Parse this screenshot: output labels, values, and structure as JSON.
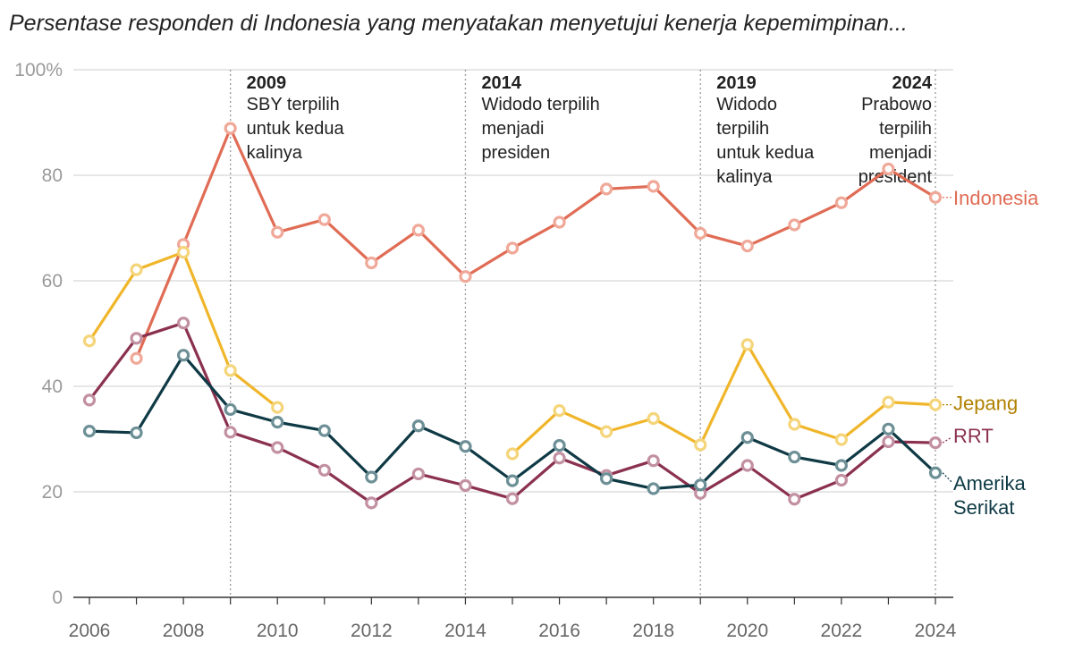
{
  "title": "Persentase responden di Indonesia yang menyatakan menyetujui kenerja kepemimpinan...",
  "chart_data": {
    "type": "line",
    "xlim": [
      2006,
      2024
    ],
    "ylim": [
      0,
      100
    ],
    "x_ticks": [
      2006,
      2008,
      2010,
      2012,
      2014,
      2016,
      2018,
      2020,
      2022,
      2024
    ],
    "y_ticks": [
      0,
      20,
      40,
      60,
      80,
      100
    ],
    "y_tick_labels": [
      "0",
      "20",
      "40",
      "60",
      "80",
      "100%"
    ],
    "grid": true,
    "series": [
      {
        "name": "Indonesia",
        "color": "#e06c55",
        "marker_color": "#f0a898",
        "x": [
          2007,
          2008,
          2009,
          2010,
          2011,
          2012,
          2013,
          2014,
          2015,
          2016,
          2017,
          2018,
          2019,
          2020,
          2021,
          2022,
          2023,
          2024
        ],
        "y": [
          45.3,
          66.9,
          88.9,
          69.2,
          71.6,
          63.4,
          69.6,
          60.8,
          66.2,
          71.1,
          77.4,
          77.9,
          69.0,
          66.6,
          70.6,
          74.8,
          81.2,
          75.8
        ]
      },
      {
        "name": "Jepang",
        "color": "#f0b62b",
        "marker_color": "#f5d57a",
        "label_color": "#b08000",
        "x": [
          2006,
          2007,
          2008,
          2009,
          2010,
          null,
          2015,
          2016,
          2017,
          2018,
          2019,
          2020,
          2021,
          2022,
          2023,
          2024
        ],
        "y": [
          48.6,
          62.1,
          65.4,
          43.0,
          36.0,
          null,
          27.2,
          35.4,
          31.4,
          33.9,
          28.9,
          47.9,
          32.8,
          29.9,
          37.0,
          36.5
        ]
      },
      {
        "name": "RRT",
        "color": "#8b3150",
        "marker_color": "#c290a2",
        "x": [
          2006,
          2007,
          2008,
          2009,
          2010,
          2011,
          2012,
          2013,
          2014,
          2015,
          2016,
          2017,
          2018,
          2019,
          2020,
          2021,
          2022,
          2023,
          2024
        ],
        "y": [
          37.4,
          49.1,
          52.0,
          31.3,
          28.4,
          24.1,
          17.9,
          23.4,
          21.2,
          18.7,
          26.4,
          23.1,
          25.9,
          19.7,
          25.0,
          18.6,
          22.2,
          29.5,
          29.3
        ]
      },
      {
        "name": "Amerika Serikat",
        "label_lines": [
          "Amerika",
          "Serikat"
        ],
        "color": "#0f3a45",
        "marker_color": "#6d8f96",
        "x": [
          2006,
          2007,
          2008,
          2009,
          2010,
          2011,
          2012,
          2013,
          2014,
          2015,
          2016,
          2017,
          2018,
          2019,
          2020,
          2021,
          2022,
          2023,
          2024
        ],
        "y": [
          31.5,
          31.2,
          45.9,
          35.6,
          33.2,
          31.6,
          22.8,
          32.5,
          28.6,
          22.1,
          28.8,
          22.5,
          20.6,
          21.3,
          30.3,
          26.6,
          25.0,
          31.9,
          23.6
        ]
      }
    ],
    "annotations": [
      {
        "x": 2009,
        "year": "2009",
        "lines": [
          "SBY terpilih",
          "untuk kedua",
          "kalinya"
        ]
      },
      {
        "x": 2014,
        "year": "2014",
        "lines": [
          "Widodo terpilih",
          "menjadi",
          "presiden"
        ]
      },
      {
        "x": 2019,
        "year": "2019",
        "lines": [
          "Widodo",
          "terpilih",
          "untuk kedua",
          "kalinya"
        ]
      },
      {
        "x": 2024,
        "year": "2024",
        "lines": [
          "Prabowo",
          "terpilih",
          "menjadi",
          "president"
        ]
      }
    ]
  }
}
